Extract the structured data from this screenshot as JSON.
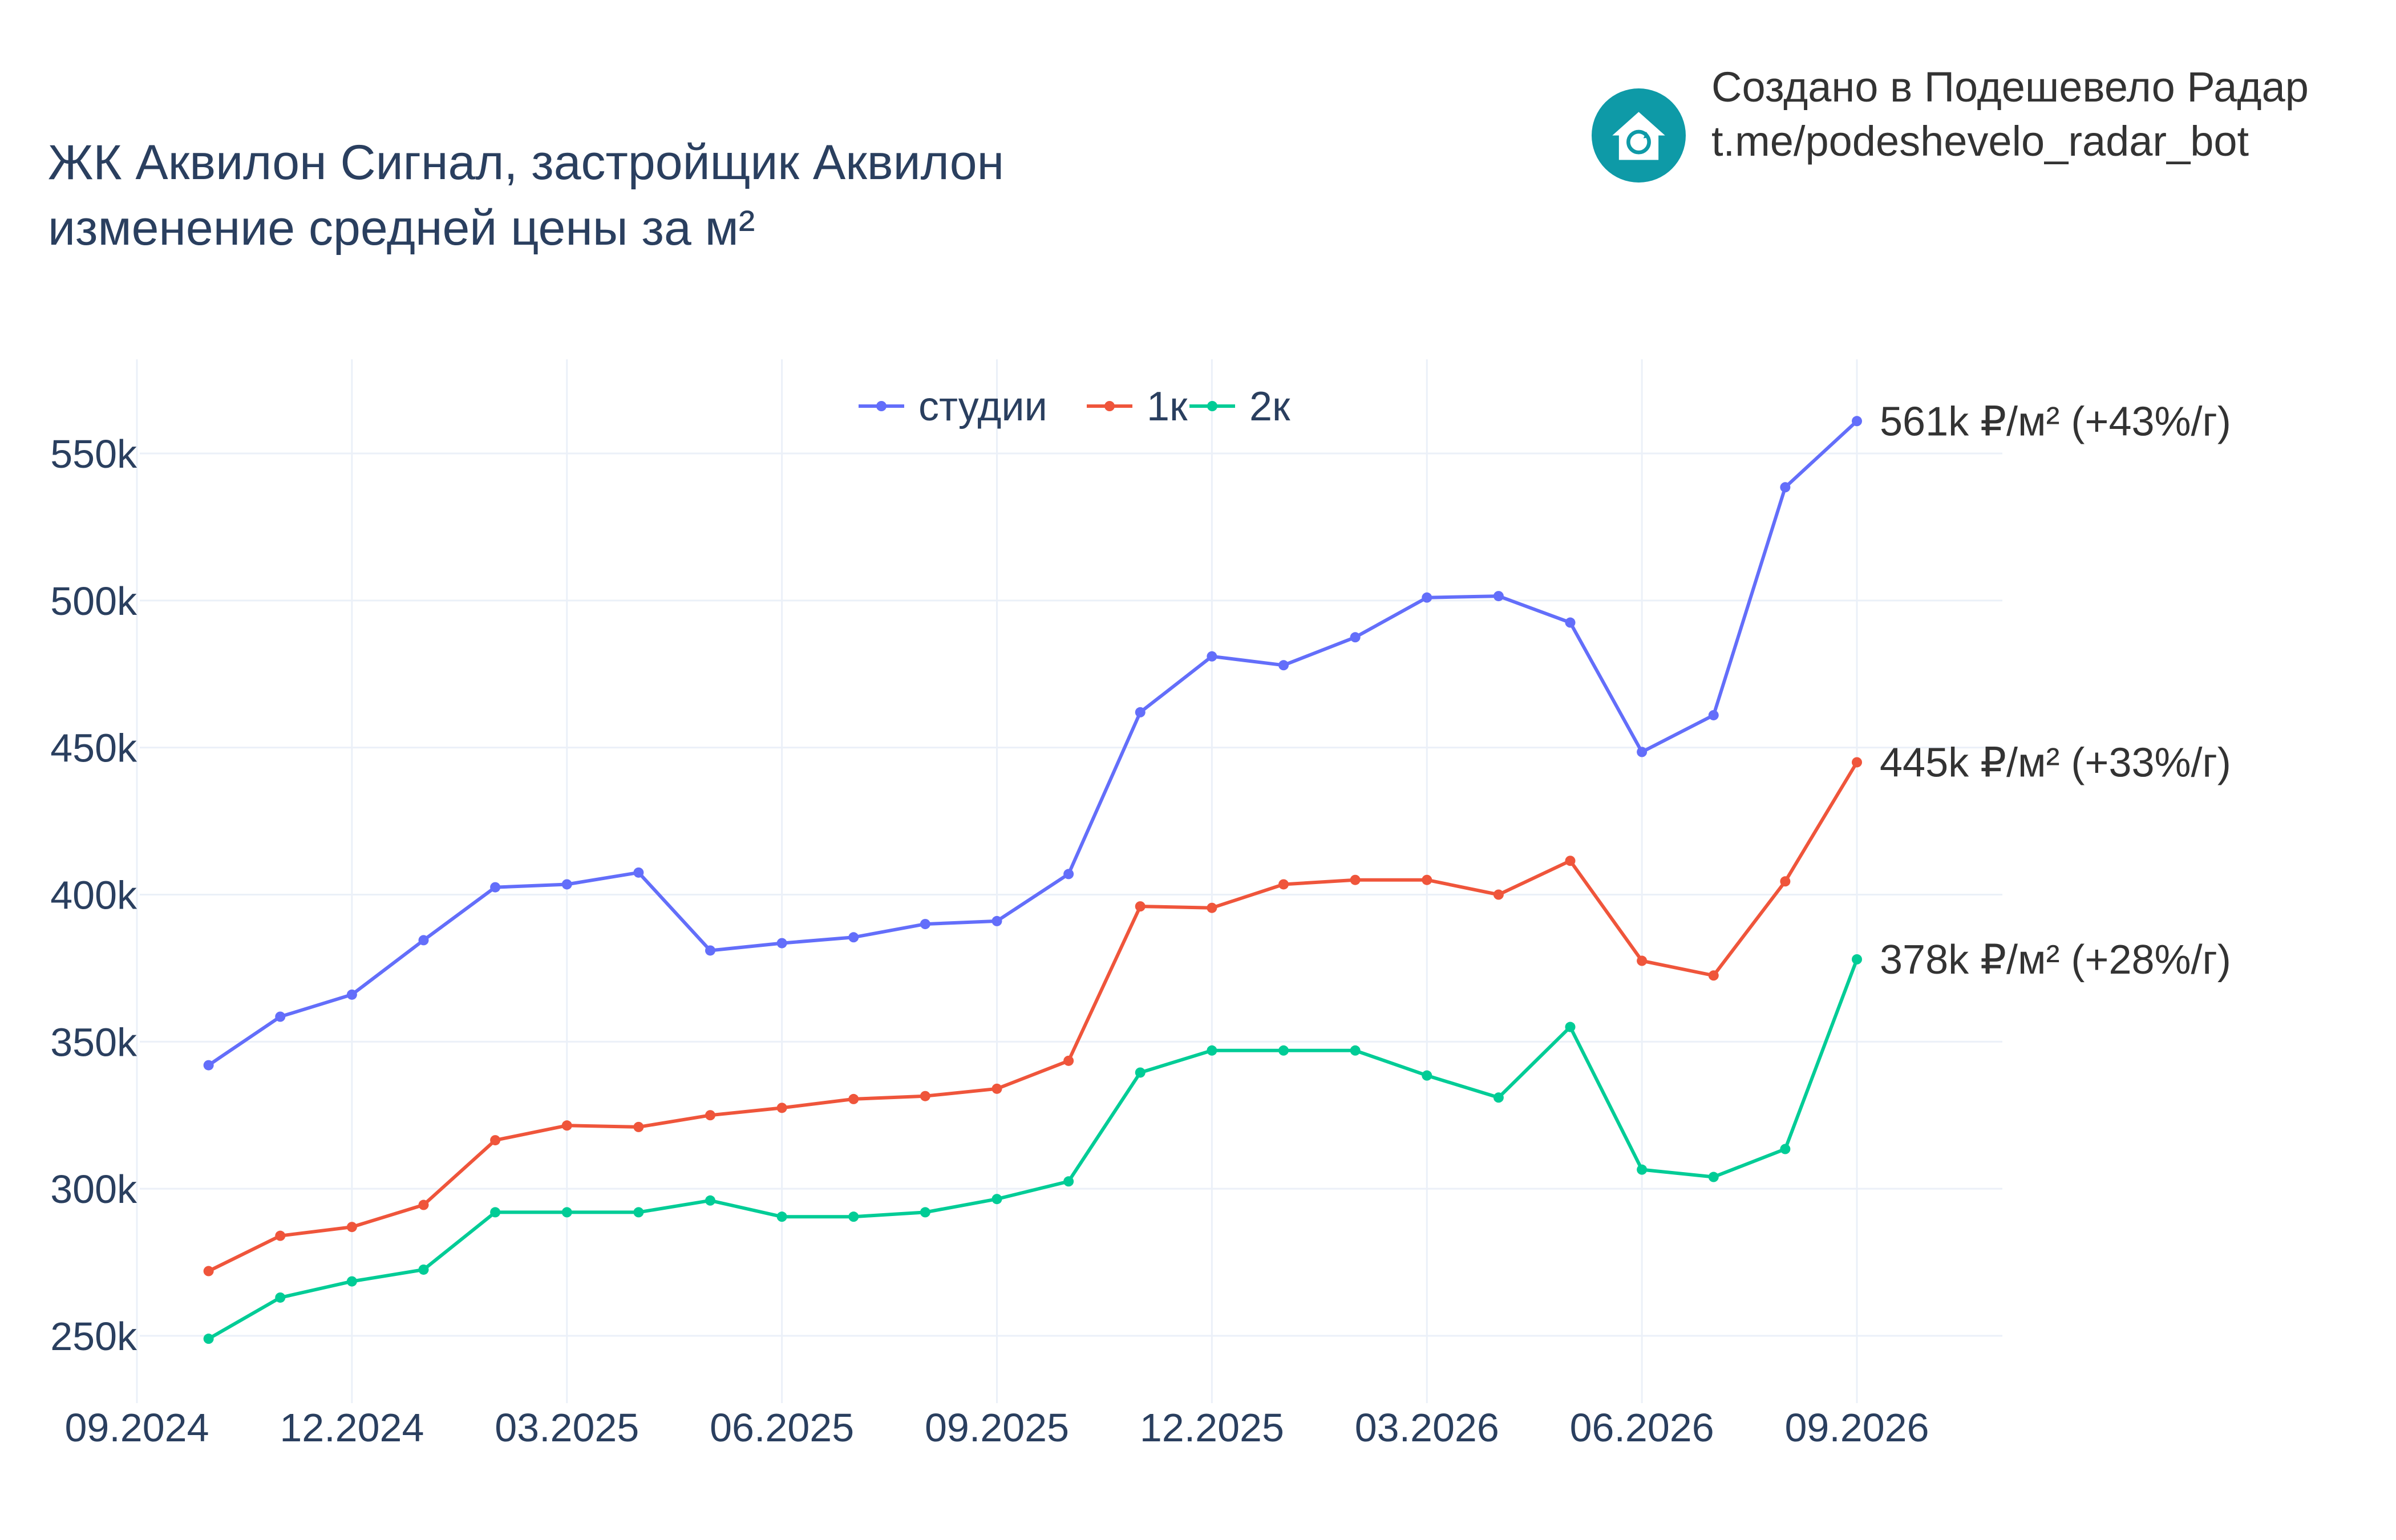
{
  "title": {
    "line1": "ЖК Аквилон Сигнал, застройщик Аквилон",
    "line2": "изменение средней цены за м²"
  },
  "brand": {
    "line1": "Создано в Подешевело Радар",
    "line2": "t.me/podeshevelo_radar_bot",
    "logo_icon": "house-refresh-icon",
    "logo_color": "#0e9aa7"
  },
  "chart_data": {
    "type": "line",
    "x": [
      "2024-10",
      "2024-11",
      "2024-12",
      "2025-01",
      "2025-02",
      "2025-03",
      "2025-04",
      "2025-05",
      "2025-06",
      "2025-07",
      "2025-08",
      "2025-09",
      "2025-10",
      "2025-11",
      "2025-12",
      "2026-01",
      "2026-02",
      "2026-03",
      "2026-04",
      "2026-05",
      "2026-06",
      "2026-07",
      "2026-08",
      "2026-09"
    ],
    "x_ticks": [
      "2024-09",
      "2024-12",
      "2025-03",
      "2025-06",
      "2025-09",
      "2025-12",
      "2026-03",
      "2026-06",
      "2026-09"
    ],
    "x_tick_labels": [
      "09.2024",
      "12.2024",
      "03.2025",
      "06.2025",
      "09.2025",
      "12.2025",
      "03.2026",
      "06.2026",
      "09.2026"
    ],
    "y_ticks": [
      250000,
      300000,
      350000,
      400000,
      450000,
      500000,
      550000
    ],
    "y_tick_labels": [
      "250k",
      "300k",
      "350k",
      "400k",
      "450k",
      "500k",
      "550k"
    ],
    "ylim": [
      230000,
      580000
    ],
    "grid": true,
    "legend_position": "top-center",
    "series": [
      {
        "name": "студии",
        "color": "#636efa",
        "values": [
          342000,
          358500,
          366000,
          384500,
          402500,
          403500,
          407500,
          381000,
          383500,
          385500,
          390000,
          391000,
          407000,
          462000,
          481000,
          478000,
          487500,
          501000,
          501500,
          492500,
          448500,
          461000,
          538500,
          561000
        ],
        "end_label": "561k ₽/м² (+43%/г)"
      },
      {
        "name": "1к",
        "color": "#ef553b",
        "values": [
          272000,
          284000,
          287000,
          294500,
          316500,
          321500,
          321000,
          325000,
          327500,
          330500,
          331500,
          334000,
          343500,
          396000,
          395500,
          403500,
          405000,
          405000,
          400000,
          411500,
          377500,
          372500,
          404500,
          445000
        ],
        "end_label": "445k ₽/м² (+33%/г)"
      },
      {
        "name": "2к",
        "color": "#00cc96",
        "values": [
          249000,
          263000,
          268500,
          272500,
          292000,
          292000,
          292000,
          296000,
          290500,
          290500,
          292000,
          296500,
          302500,
          339500,
          347000,
          347000,
          347000,
          338500,
          331000,
          355000,
          306500,
          304000,
          313500,
          378000
        ],
        "end_label": "378k ₽/м² (+28%/г)"
      }
    ]
  }
}
